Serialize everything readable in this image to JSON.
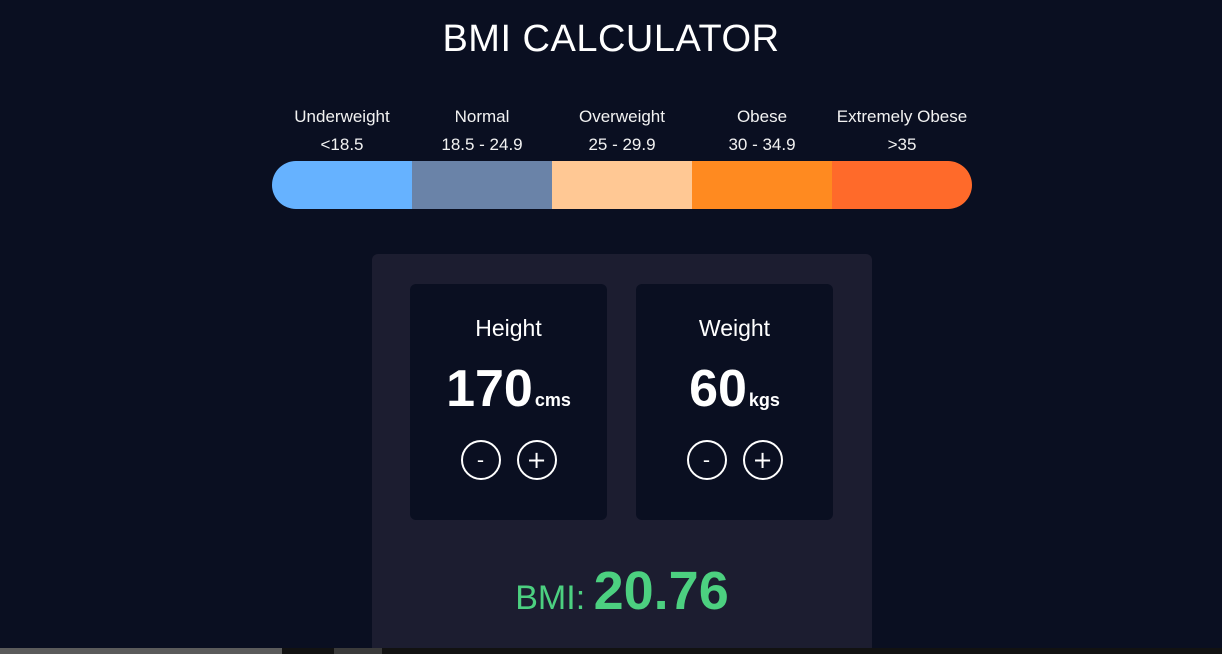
{
  "app": {
    "title": "BMI CALCULATOR"
  },
  "scale": {
    "categories": [
      {
        "name": "Underweight",
        "range": "<18.5",
        "color": "#66b2ff"
      },
      {
        "name": "Normal",
        "range": "18.5 - 24.9",
        "color": "#6a83a8"
      },
      {
        "name": "Overweight",
        "range": "25 - 29.9",
        "color": "#ffc894"
      },
      {
        "name": "Obese",
        "range": "30 - 34.9",
        "color": "#ff8a20"
      },
      {
        "name": "Extremely Obese",
        "range": ">35",
        "color": "#ff6a2a"
      }
    ]
  },
  "height": {
    "label": "Height",
    "value": "170",
    "unit": "cms",
    "minus_label": "-",
    "plus_label": "+"
  },
  "weight": {
    "label": "Weight",
    "value": "60",
    "unit": "kgs",
    "minus_label": "-",
    "plus_label": "+"
  },
  "result": {
    "label": "BMI:",
    "value": "20.76",
    "color": "#4cd080"
  },
  "icons": {
    "minus": "minus-icon",
    "plus": "plus-icon"
  }
}
